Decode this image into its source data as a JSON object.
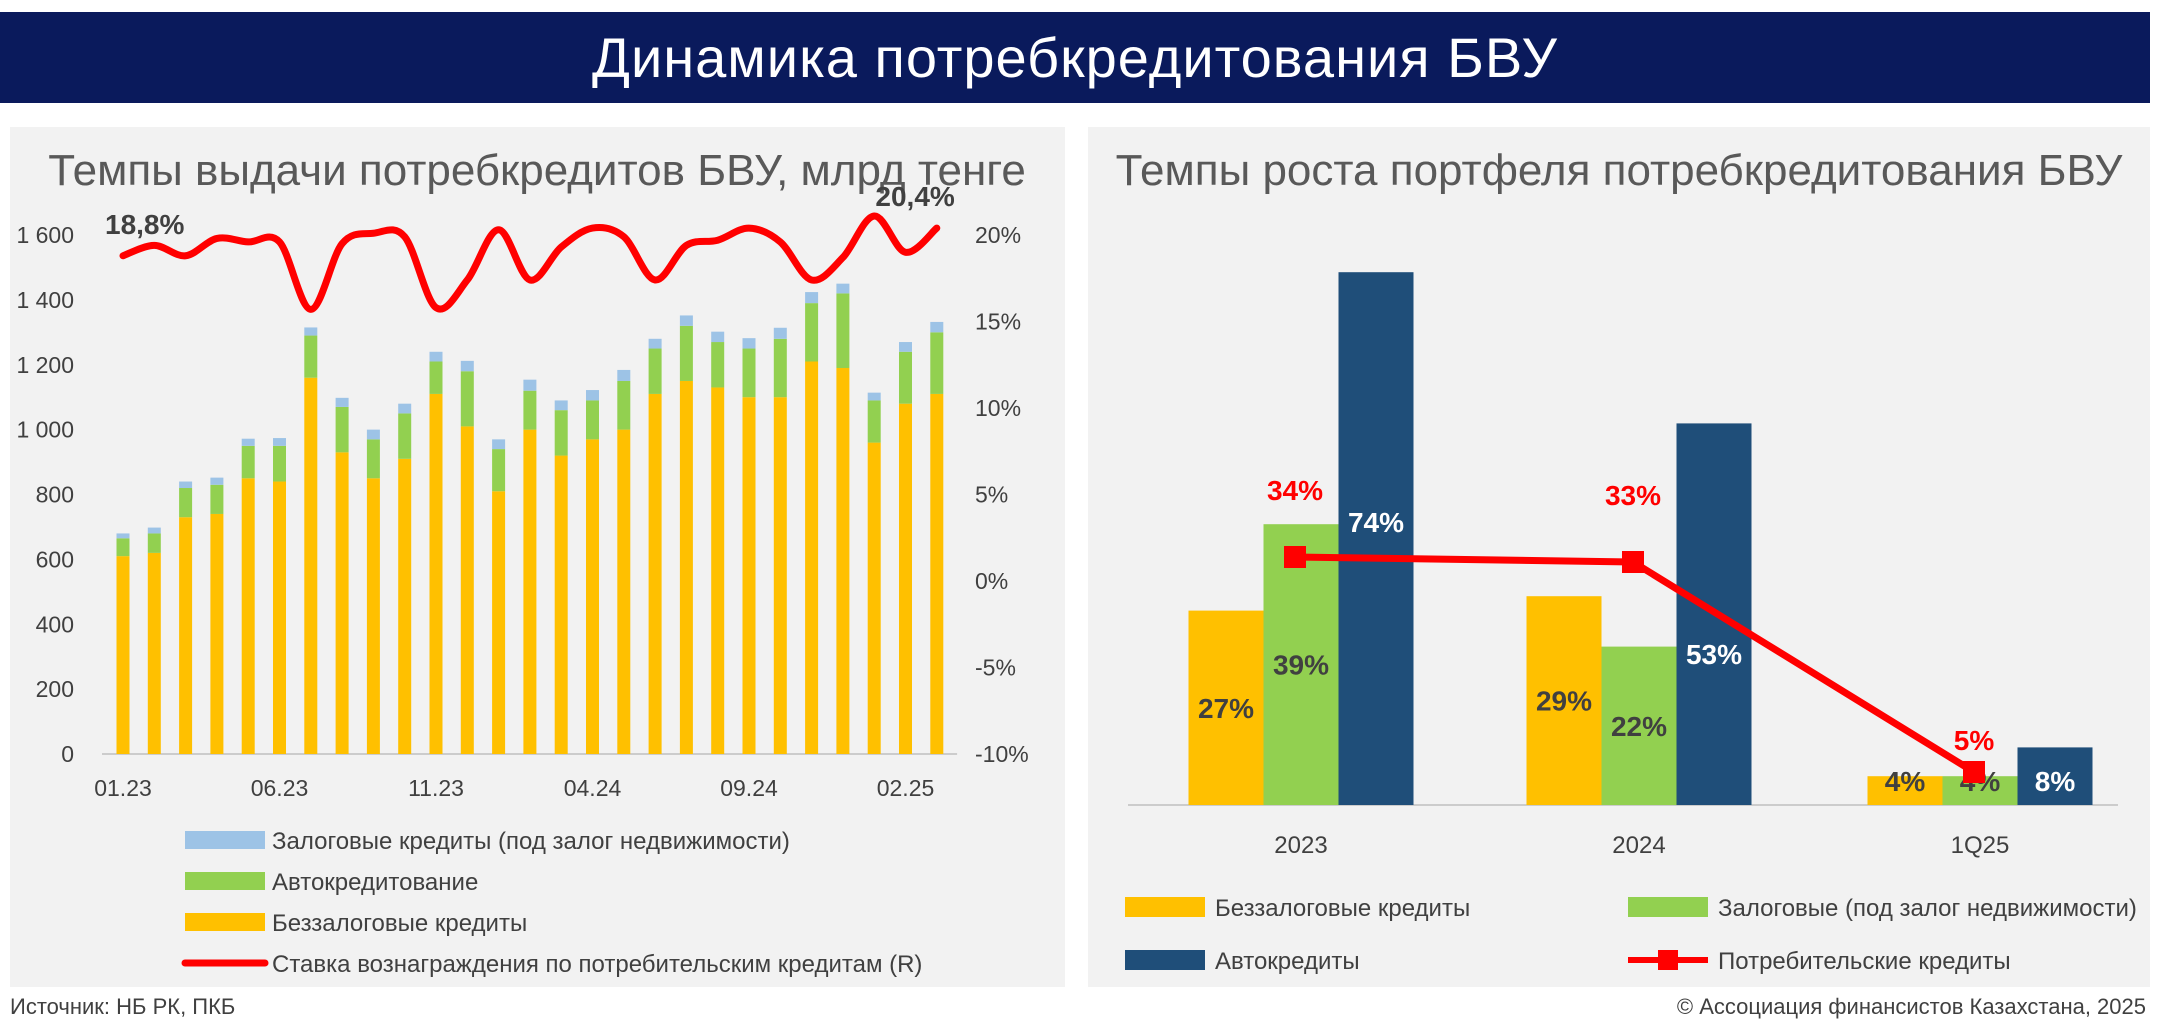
{
  "header": {
    "title": "Динамика потребкредитования БВУ"
  },
  "left_chart": {
    "title": "Темпы выдачи потребкредитов БВУ, млрд тенге"
  },
  "right_chart": {
    "title": "Темпы роста портфеля потребкредитования БВУ"
  },
  "footer": {
    "source": "Источник: НБ РК, ПКБ",
    "copyright": "© Ассоциация финансистов Казахстана, 2025"
  },
  "chart_data": [
    {
      "type": "bar",
      "stacked": true,
      "title": "Темпы выдачи потребкредитов БВУ, млрд тенге",
      "categories": [
        "01.23",
        "02.23",
        "03.23",
        "04.23",
        "05.23",
        "06.23",
        "07.23",
        "08.23",
        "09.23",
        "10.23",
        "11.23",
        "12.23",
        "01.24",
        "02.24",
        "03.24",
        "04.24",
        "05.24",
        "06.24",
        "07.24",
        "08.24",
        "09.24",
        "10.24",
        "11.24",
        "12.24",
        "01.25",
        "02.25",
        "03.25"
      ],
      "tick_labels": [
        "01.23",
        "06.23",
        "11.23",
        "04.24",
        "09.24",
        "02.25"
      ],
      "ylim": [
        0,
        1600
      ],
      "y_ticks": [
        "0",
        "200",
        "400",
        "600",
        "800",
        "1 000",
        "1 200",
        "1 400",
        "1 600"
      ],
      "y2lim": [
        -10,
        20
      ],
      "y2_ticks": [
        "-10%",
        "-5%",
        "0%",
        "5%",
        "10%",
        "15%",
        "20%"
      ],
      "series": [
        {
          "name": "Беззалоговые кредиты",
          "color": "#ffc000",
          "values": [
            610,
            620,
            730,
            740,
            850,
            840,
            1160,
            930,
            850,
            910,
            1110,
            1010,
            810,
            1000,
            920,
            970,
            1000,
            1110,
            1150,
            1130,
            1100,
            1100,
            1210,
            1190,
            960,
            1080,
            1110
          ]
        },
        {
          "name": "Автокредитование",
          "color": "#92d050",
          "values": [
            55,
            60,
            90,
            90,
            100,
            110,
            130,
            140,
            120,
            140,
            100,
            170,
            130,
            120,
            140,
            120,
            150,
            140,
            170,
            140,
            150,
            180,
            180,
            230,
            130,
            160,
            190
          ]
        },
        {
          "name": "Залоговые кредиты (под залог недвижимости)",
          "color": "#9dc3e6",
          "values": [
            15,
            18,
            20,
            22,
            22,
            24,
            25,
            28,
            30,
            30,
            30,
            32,
            30,
            34,
            30,
            32,
            34,
            30,
            32,
            32,
            32,
            34,
            34,
            30,
            24,
            30,
            32
          ]
        }
      ],
      "line": {
        "name": "Ставка вознаграждения по  потребительским кредитам (R)",
        "color": "#ff0000",
        "axis": "right",
        "values": [
          18.8,
          19.4,
          18.8,
          19.8,
          19.6,
          19.6,
          15.7,
          19.5,
          20.1,
          19.9,
          15.8,
          17.4,
          20.3,
          17.4,
          19.3,
          20.4,
          19.9,
          17.4,
          19.4,
          19.7,
          20.4,
          19.6,
          17.4,
          18.7,
          21.1,
          19.0,
          20.4
        ],
        "labels": [
          {
            "index": 0,
            "text": "18,8%"
          },
          {
            "index": 26,
            "text": "20,4%"
          }
        ]
      }
    },
    {
      "type": "bar",
      "title": "Темпы роста портфеля потребкредитования БВУ",
      "categories": [
        "2023",
        "2024",
        "1Q25"
      ],
      "ylim": [
        0,
        75
      ],
      "series": [
        {
          "name": "Беззалоговые кредиты",
          "color": "#ffc000",
          "values": [
            27,
            29,
            4
          ],
          "labels": [
            "27%",
            "29%",
            "4%"
          ]
        },
        {
          "name": "Залоговые  (под залог недвижимости)",
          "color": "#92d050",
          "values": [
            39,
            22,
            4
          ],
          "labels": [
            "39%",
            "22%",
            "4%"
          ]
        },
        {
          "name": "Автокредиты",
          "color": "#1f4e79",
          "values": [
            74,
            53,
            8
          ],
          "labels": [
            "74%",
            "53%",
            "8%"
          ]
        }
      ],
      "line": {
        "name": "Потребительские кредиты",
        "color": "#ff0000",
        "values": [
          34,
          33,
          5
        ],
        "labels": [
          "34%",
          "33%",
          "5%"
        ]
      }
    }
  ]
}
